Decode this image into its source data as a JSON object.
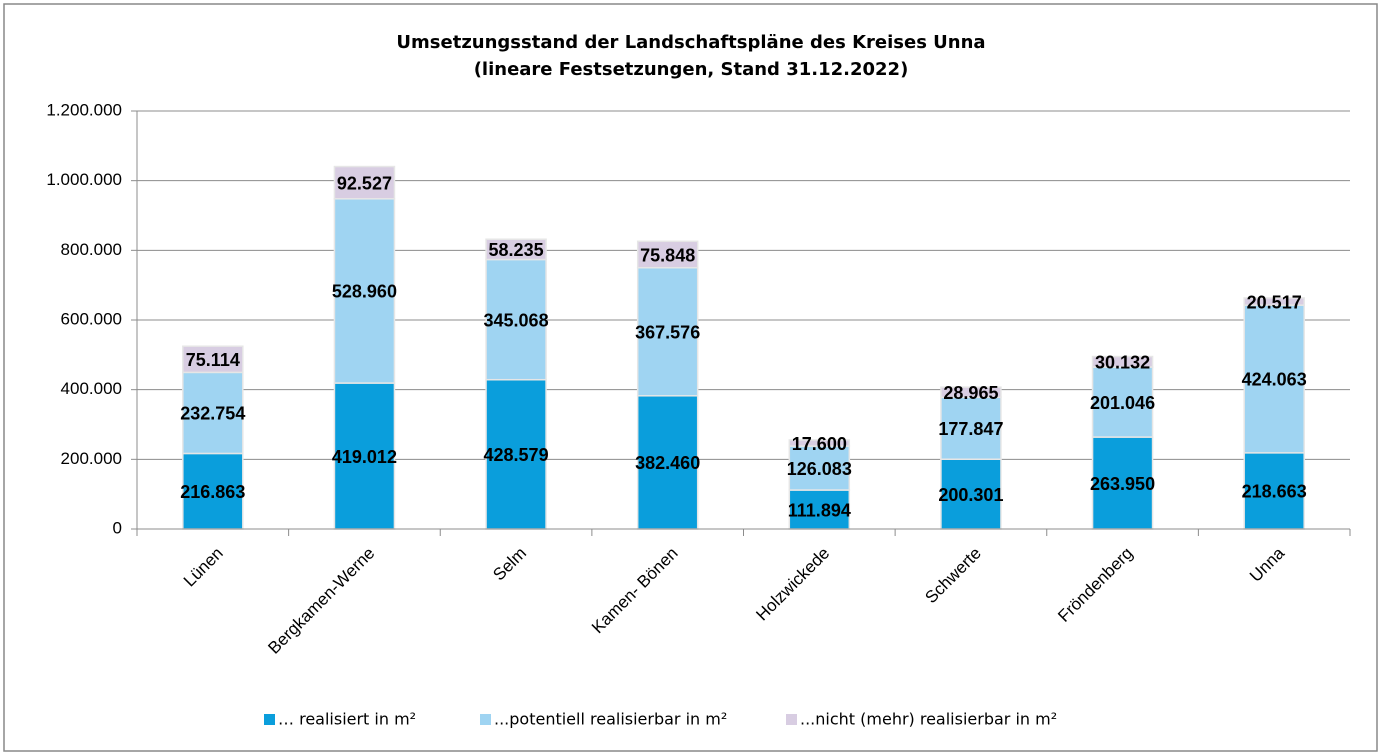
{
  "chart_data": {
    "type": "bar",
    "stacked": true,
    "title": "Umsetzungsstand der Landschaftspläne des Kreises Unna",
    "subtitle": "(lineare Festsetzungen, Stand 31.12.2022)",
    "categories": [
      "Lünen",
      "Bergkamen-Werne",
      "Selm",
      "Kamen- Bönen",
      "Holzwickede",
      "Schwerte",
      "Fröndenberg",
      "Unna"
    ],
    "series": [
      {
        "name": "… realisiert in m²",
        "color": "#0a9edc",
        "values": [
          216863,
          419012,
          428579,
          382460,
          111894,
          200301,
          263950,
          218663
        ],
        "value_labels": [
          "216.863",
          "419.012",
          "428.579",
          "382.460",
          "111.894",
          "200.301",
          "263.950",
          "218.663"
        ]
      },
      {
        "name": "...potentiell realisierbar in m²",
        "color": "#9fd4f2",
        "values": [
          232754,
          528960,
          345068,
          367576,
          126083,
          177847,
          201046,
          424063
        ],
        "value_labels": [
          "232.754",
          "528.960",
          "345.068",
          "367.576",
          "126.083",
          "177.847",
          "201.046",
          "424.063"
        ]
      },
      {
        "name": "...nicht (mehr) realisierbar in m²",
        "color": "#d8cde2",
        "values": [
          75114,
          92527,
          58235,
          75848,
          17600,
          28965,
          30132,
          20517
        ],
        "value_labels": [
          "75.114",
          "92.527",
          "58.235",
          "75.848",
          "17.600",
          "28.965",
          "30.132",
          "20.517"
        ]
      }
    ],
    "ylim": [
      0,
      1200000
    ],
    "yticks": [
      0,
      {
        "value": 200000,
        "label": "200.000"
      },
      {
        "value": 400000,
        "label": "400.000"
      },
      {
        "value": 600000,
        "label": "600.000"
      },
      {
        "value": 800000,
        "label": "800.000"
      },
      {
        "value": 1000000,
        "label": "1.000.000"
      },
      {
        "value": 1200000,
        "label": "1.200.000"
      }
    ],
    "grid": true,
    "legend": "bottom"
  }
}
